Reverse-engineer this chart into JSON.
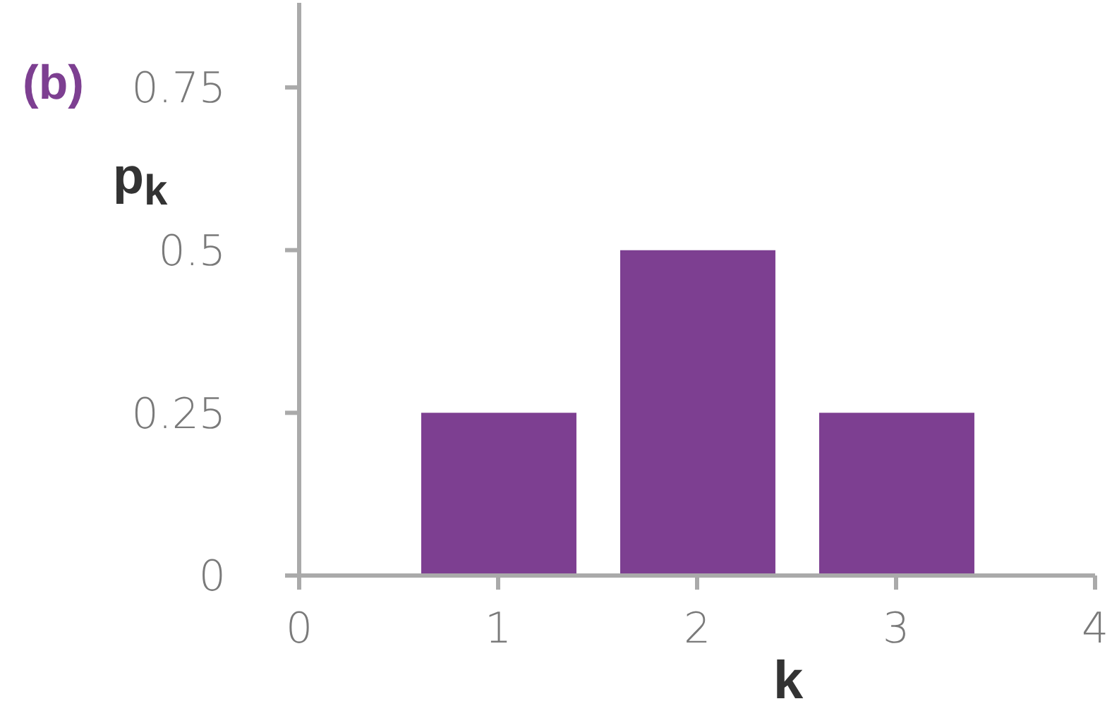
{
  "chart_data": {
    "type": "bar",
    "annotations": [
      "(b)"
    ],
    "xlabel": "k",
    "ylabel": "p$_{k}$",
    "x": [
      1,
      2,
      3
    ],
    "values": [
      0.25,
      0.5,
      0.25
    ],
    "color": "#7d3f91",
    "xlim": [
      0,
      4
    ],
    "xticks": [
      0,
      1,
      2,
      3,
      4
    ],
    "ylim": [
      0,
      0.88
    ],
    "yticks": [
      0,
      0.25,
      0.5,
      0.75
    ],
    "grid": false
  }
}
